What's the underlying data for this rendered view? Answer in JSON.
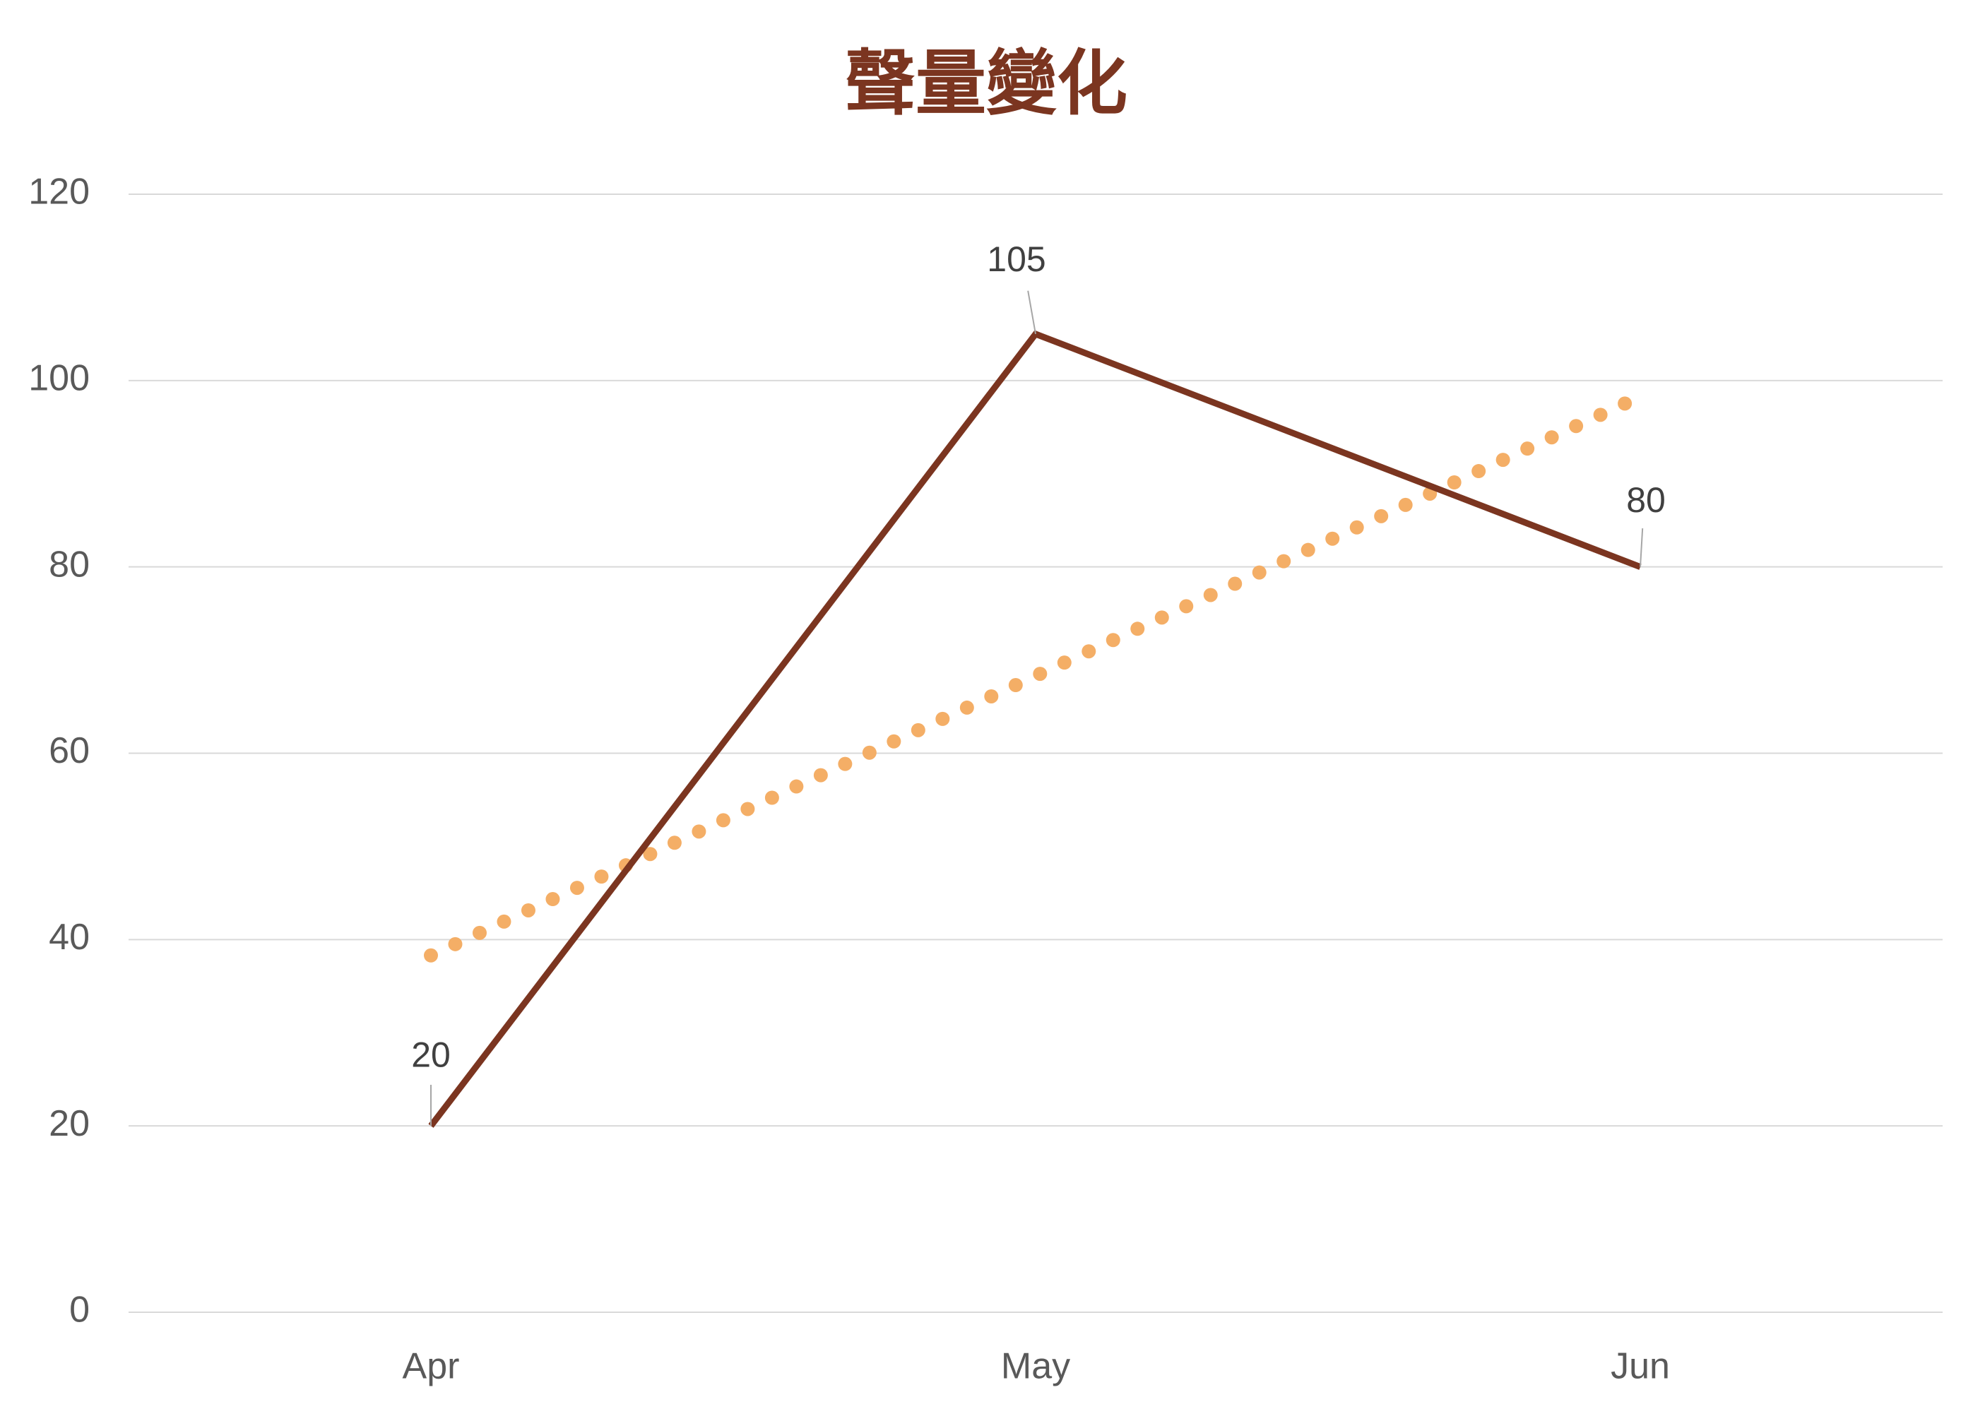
{
  "chart_data": {
    "type": "line",
    "title": "聲量變化",
    "categories": [
      "Apr",
      "May",
      "Jun"
    ],
    "series": [
      {
        "color": "#7b3520",
        "values": [
          20,
          105,
          80
        ]
      }
    ],
    "trend_values": [
      38.3,
      68.3,
      98.3
    ],
    "trend_color": "#f4ae66",
    "ylim": [
      0,
      120
    ],
    "yticks": [
      0,
      20,
      40,
      60,
      80,
      100,
      120
    ],
    "grid": true
  }
}
